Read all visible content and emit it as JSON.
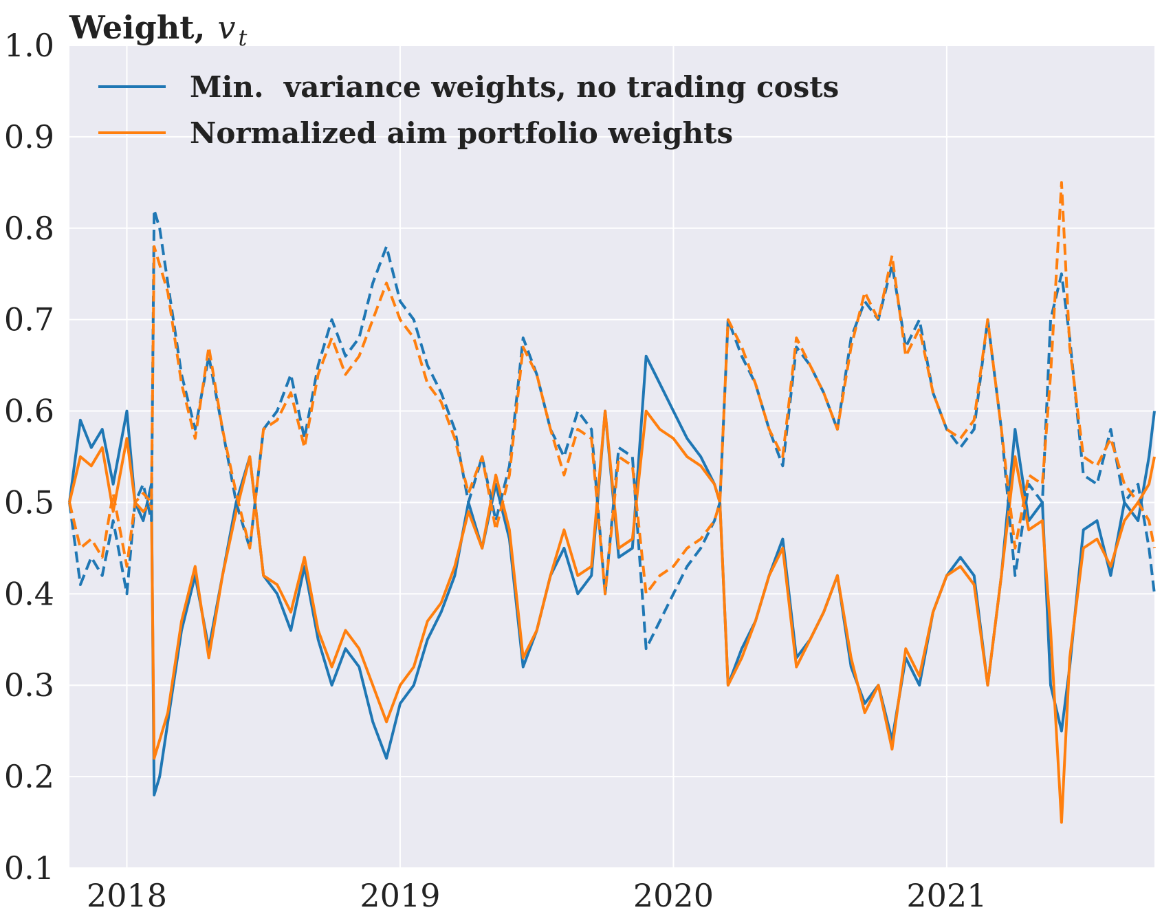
{
  "chart_data": {
    "type": "line",
    "title": "Weight,",
    "title_variable": "v_t",
    "title_variable_base": "v",
    "title_variable_sub": "t",
    "xlabel": "",
    "ylabel": "",
    "xlim": [
      2017.79,
      2021.76
    ],
    "ylim": [
      0.1,
      1.0
    ],
    "x_ticks": [
      2018,
      2019,
      2020,
      2021
    ],
    "x_tick_labels": [
      "2018",
      "2019",
      "2020",
      "2021"
    ],
    "y_ticks": [
      0.1,
      0.2,
      0.3,
      0.4,
      0.5,
      0.6,
      0.7,
      0.8,
      0.9,
      1.0
    ],
    "y_tick_labels": [
      "0.1",
      "0.2",
      "0.3",
      "0.4",
      "0.5",
      "0.6",
      "0.7",
      "0.8",
      "0.9",
      "1.0"
    ],
    "grid": true,
    "legend_position": "top-left",
    "background": "#eaeaf2",
    "colors": {
      "blue": "#1f77b4",
      "orange": "#ff7f0e",
      "grid": "#ffffff",
      "text": "#222222"
    },
    "legend": [
      {
        "label": "Min.  variance weights, no trading costs",
        "color": "#1f77b4"
      },
      {
        "label": "Normalized aim portfolio weights",
        "color": "#ff7f0e"
      }
    ],
    "x": [
      2017.79,
      2017.83,
      2017.87,
      2017.91,
      2017.95,
      2018.0,
      2018.03,
      2018.06,
      2018.09,
      2018.1,
      2018.12,
      2018.15,
      2018.2,
      2018.25,
      2018.3,
      2018.35,
      2018.4,
      2018.45,
      2018.5,
      2018.55,
      2018.6,
      2018.65,
      2018.7,
      2018.75,
      2018.8,
      2018.85,
      2018.9,
      2018.95,
      2019.0,
      2019.05,
      2019.1,
      2019.15,
      2019.2,
      2019.25,
      2019.3,
      2019.35,
      2019.4,
      2019.45,
      2019.5,
      2019.55,
      2019.6,
      2019.65,
      2019.7,
      2019.75,
      2019.8,
      2019.85,
      2019.9,
      2019.95,
      2020.0,
      2020.05,
      2020.1,
      2020.15,
      2020.17,
      2020.2,
      2020.25,
      2020.3,
      2020.35,
      2020.4,
      2020.45,
      2020.5,
      2020.55,
      2020.6,
      2020.65,
      2020.7,
      2020.75,
      2020.8,
      2020.85,
      2020.9,
      2020.95,
      2021.0,
      2021.05,
      2021.1,
      2021.15,
      2021.2,
      2021.25,
      2021.3,
      2021.35,
      2021.38,
      2021.42,
      2021.45,
      2021.5,
      2021.55,
      2021.6,
      2021.65,
      2021.7,
      2021.74,
      2021.76
    ],
    "series": [
      {
        "color": "#1f77b4",
        "dash": "solid",
        "values": [
          0.5,
          0.59,
          0.56,
          0.58,
          0.52,
          0.6,
          0.5,
          0.48,
          0.52,
          0.18,
          0.2,
          0.26,
          0.36,
          0.42,
          0.34,
          0.42,
          0.5,
          0.55,
          0.42,
          0.4,
          0.36,
          0.43,
          0.35,
          0.3,
          0.34,
          0.32,
          0.26,
          0.22,
          0.28,
          0.3,
          0.35,
          0.38,
          0.42,
          0.5,
          0.45,
          0.52,
          0.46,
          0.32,
          0.36,
          0.42,
          0.45,
          0.4,
          0.42,
          0.6,
          0.44,
          0.45,
          0.66,
          0.63,
          0.6,
          0.57,
          0.55,
          0.52,
          0.5,
          0.3,
          0.34,
          0.37,
          0.42,
          0.46,
          0.33,
          0.35,
          0.38,
          0.42,
          0.32,
          0.28,
          0.3,
          0.24,
          0.33,
          0.3,
          0.38,
          0.42,
          0.44,
          0.42,
          0.3,
          0.42,
          0.58,
          0.48,
          0.5,
          0.3,
          0.25,
          0.32,
          0.47,
          0.48,
          0.42,
          0.5,
          0.48,
          0.55,
          0.6
        ]
      },
      {
        "color": "#ff7f0e",
        "dash": "solid",
        "values": [
          0.5,
          0.55,
          0.54,
          0.56,
          0.49,
          0.57,
          0.5,
          0.49,
          0.5,
          0.22,
          0.24,
          0.27,
          0.37,
          0.43,
          0.33,
          0.42,
          0.49,
          0.55,
          0.42,
          0.41,
          0.38,
          0.44,
          0.36,
          0.32,
          0.36,
          0.34,
          0.3,
          0.26,
          0.3,
          0.32,
          0.37,
          0.39,
          0.43,
          0.49,
          0.45,
          0.53,
          0.47,
          0.33,
          0.36,
          0.42,
          0.47,
          0.42,
          0.43,
          0.6,
          0.45,
          0.46,
          0.6,
          0.58,
          0.57,
          0.55,
          0.54,
          0.52,
          0.5,
          0.3,
          0.33,
          0.37,
          0.42,
          0.45,
          0.32,
          0.35,
          0.38,
          0.42,
          0.33,
          0.27,
          0.3,
          0.23,
          0.34,
          0.31,
          0.38,
          0.42,
          0.43,
          0.41,
          0.3,
          0.42,
          0.55,
          0.47,
          0.48,
          0.36,
          0.15,
          0.33,
          0.45,
          0.46,
          0.43,
          0.48,
          0.5,
          0.52,
          0.55
        ]
      },
      {
        "color": "#1f77b4",
        "dash": "dashed",
        "values": [
          0.5,
          0.41,
          0.44,
          0.42,
          0.48,
          0.4,
          0.5,
          0.52,
          0.48,
          0.82,
          0.8,
          0.74,
          0.64,
          0.58,
          0.66,
          0.58,
          0.5,
          0.45,
          0.58,
          0.6,
          0.64,
          0.57,
          0.65,
          0.7,
          0.66,
          0.68,
          0.74,
          0.78,
          0.72,
          0.7,
          0.65,
          0.62,
          0.58,
          0.5,
          0.55,
          0.48,
          0.54,
          0.68,
          0.64,
          0.58,
          0.55,
          0.6,
          0.58,
          0.4,
          0.56,
          0.55,
          0.34,
          0.37,
          0.4,
          0.43,
          0.45,
          0.48,
          0.5,
          0.7,
          0.66,
          0.63,
          0.58,
          0.54,
          0.67,
          0.65,
          0.62,
          0.58,
          0.68,
          0.72,
          0.7,
          0.76,
          0.67,
          0.7,
          0.62,
          0.58,
          0.56,
          0.58,
          0.7,
          0.58,
          0.42,
          0.52,
          0.5,
          0.7,
          0.75,
          0.68,
          0.53,
          0.52,
          0.58,
          0.5,
          0.52,
          0.45,
          0.4
        ]
      },
      {
        "color": "#ff7f0e",
        "dash": "dashed",
        "values": [
          0.5,
          0.45,
          0.46,
          0.44,
          0.51,
          0.43,
          0.5,
          0.51,
          0.5,
          0.78,
          0.76,
          0.73,
          0.63,
          0.57,
          0.67,
          0.58,
          0.51,
          0.45,
          0.58,
          0.59,
          0.62,
          0.56,
          0.64,
          0.68,
          0.64,
          0.66,
          0.7,
          0.74,
          0.7,
          0.68,
          0.63,
          0.61,
          0.57,
          0.51,
          0.55,
          0.47,
          0.53,
          0.67,
          0.64,
          0.58,
          0.53,
          0.58,
          0.57,
          0.4,
          0.55,
          0.54,
          0.4,
          0.42,
          0.43,
          0.45,
          0.46,
          0.48,
          0.5,
          0.7,
          0.67,
          0.63,
          0.58,
          0.55,
          0.68,
          0.65,
          0.62,
          0.58,
          0.67,
          0.73,
          0.7,
          0.77,
          0.66,
          0.69,
          0.62,
          0.58,
          0.57,
          0.59,
          0.7,
          0.58,
          0.45,
          0.53,
          0.52,
          0.64,
          0.85,
          0.67,
          0.55,
          0.54,
          0.57,
          0.52,
          0.5,
          0.48,
          0.45
        ]
      }
    ]
  }
}
